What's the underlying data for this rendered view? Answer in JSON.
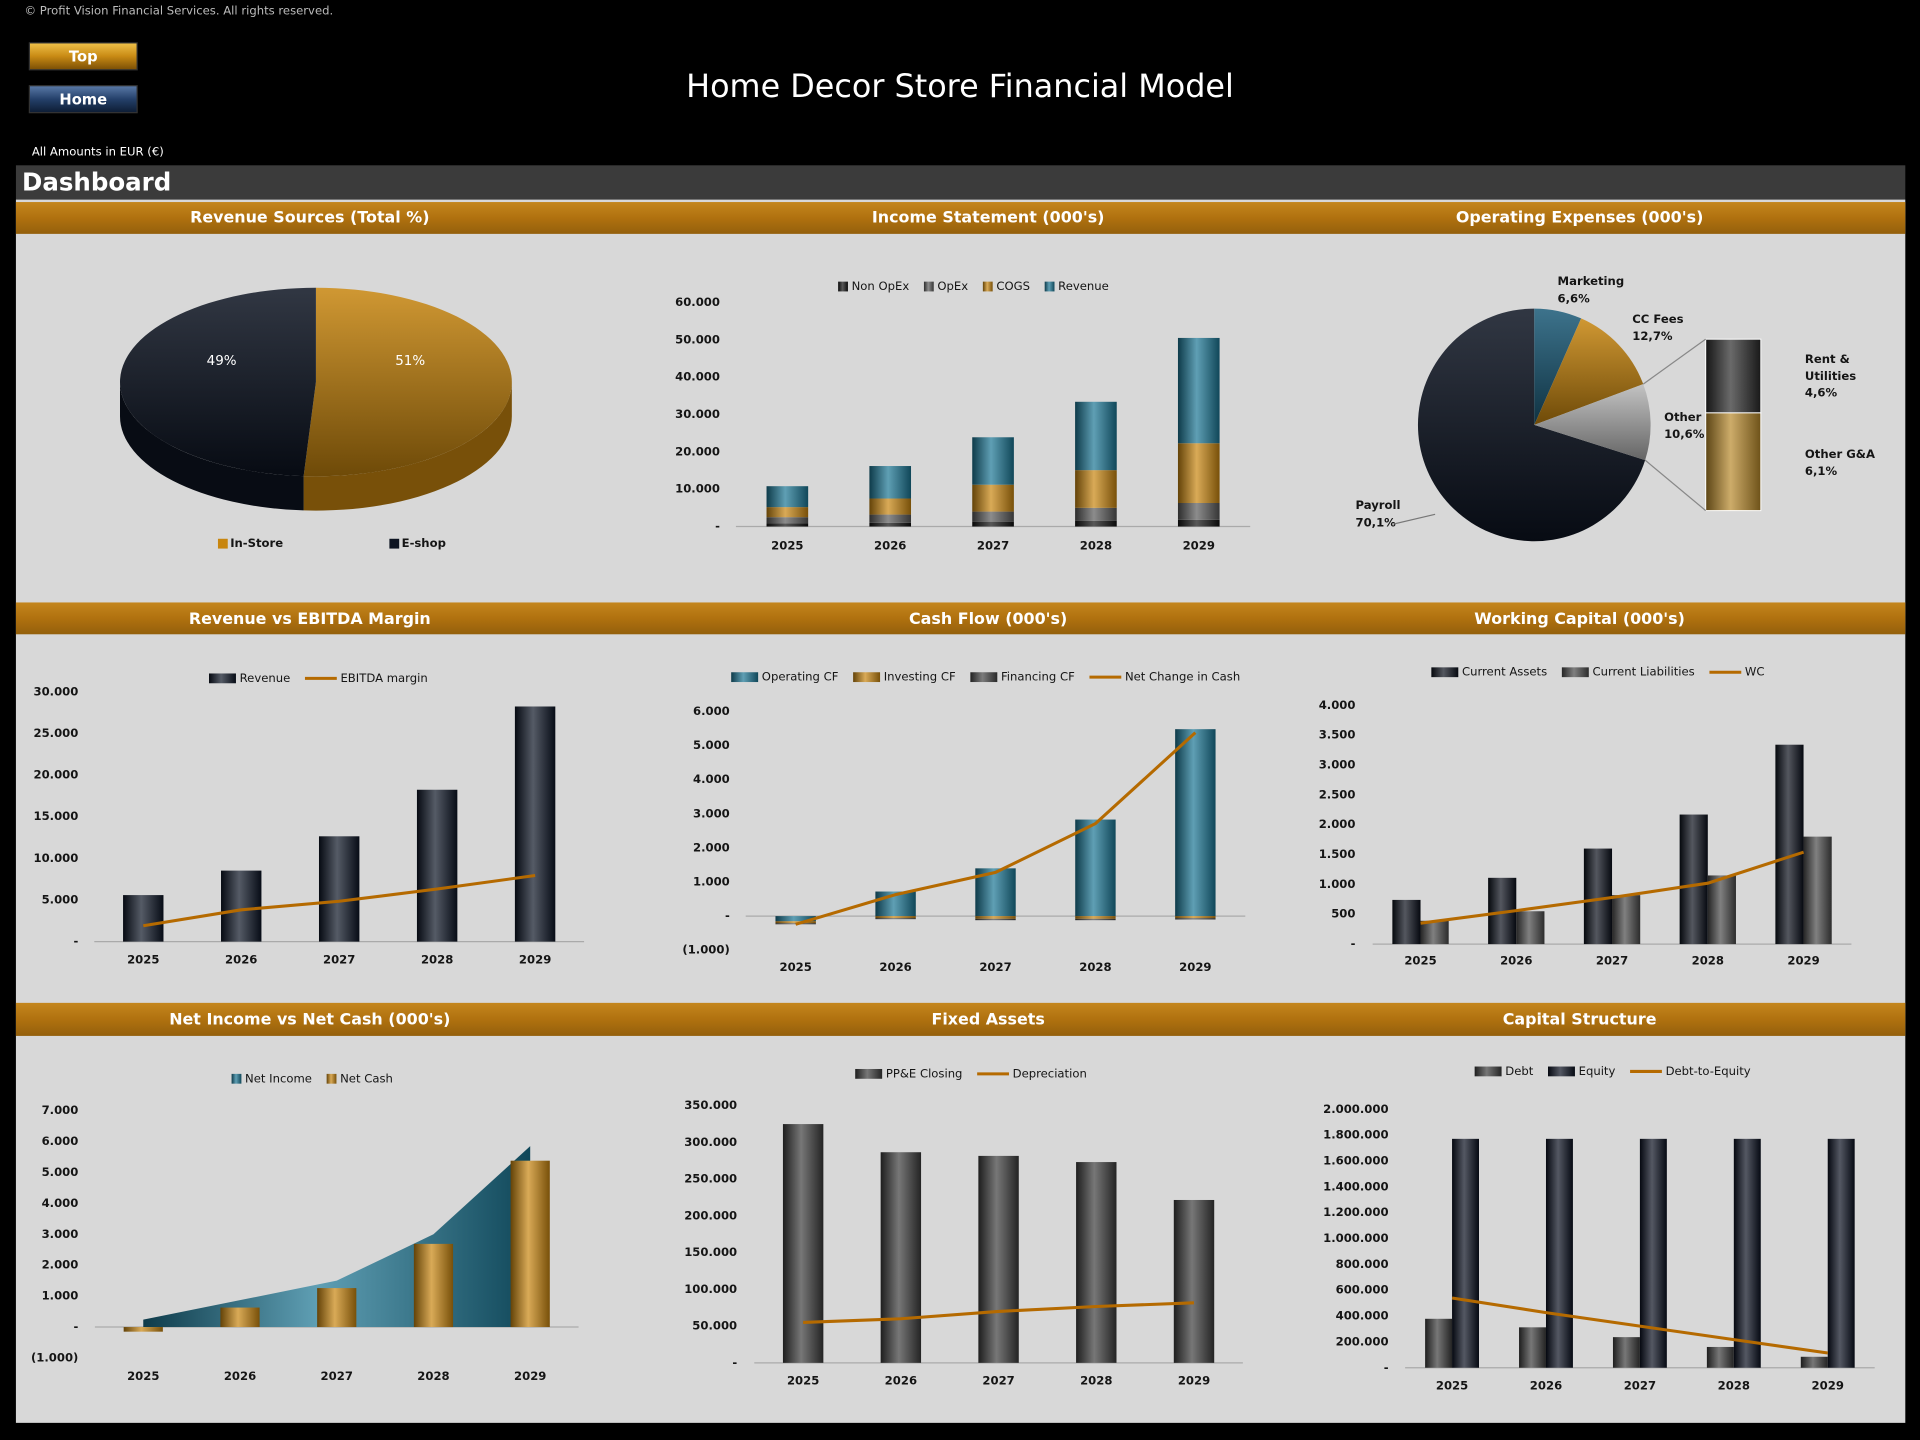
{
  "header": {
    "copyright": "© Profit Vision Financial Services. All rights reserved.",
    "buttons": [
      "Top",
      "Home"
    ],
    "title": "Home Decor Store Financial Model",
    "currency_note": "All Amounts in  EUR (€)",
    "section": "Dashboard"
  },
  "chart_data": [
    {
      "type": "pie3d",
      "title": "Revenue Sources (Total %)",
      "categories": [
        "In-Store",
        "E-shop"
      ],
      "values": [
        51,
        49
      ],
      "value_labels": [
        "51%",
        "49%"
      ],
      "colors": [
        "#c8860f",
        "#0d1422"
      ],
      "legend": "bottom"
    },
    {
      "type": "bar",
      "title": "Income Statement (000's)",
      "categories": [
        "2025",
        "2026",
        "2027",
        "2028",
        "2029"
      ],
      "stacked": true,
      "series": [
        {
          "name": "Non OpEx",
          "color": "#111111",
          "type": "bar",
          "values": [
            800,
            1000,
            1300,
            1500,
            1800
          ]
        },
        {
          "name": "OpEx",
          "color": "#5a5a5a",
          "type": "bar",
          "values": [
            1700,
            2200,
            2700,
            3500,
            4500
          ]
        },
        {
          "name": "COGS",
          "color": "#c8860f",
          "type": "bar",
          "values": [
            2700,
            4300,
            7200,
            10100,
            16000
          ]
        },
        {
          "name": "Revenue",
          "color": "#1b7694",
          "type": "bar",
          "values": [
            5600,
            8700,
            12700,
            18300,
            28200
          ]
        }
      ],
      "ylim": [
        0,
        60000
      ],
      "yticks": [
        {
          "value": 0,
          "label": "-"
        },
        {
          "value": 10000,
          "label": "10.000"
        },
        {
          "value": 20000,
          "label": "20.000"
        },
        {
          "value": 30000,
          "label": "30.000"
        },
        {
          "value": 40000,
          "label": "40.000"
        },
        {
          "value": 50000,
          "label": "50.000"
        },
        {
          "value": 60000,
          "label": "60.000"
        }
      ],
      "grid": false,
      "legend": "top"
    },
    {
      "type": "pie-of-bar",
      "title": "Operating Expenses (000's)",
      "categories": [
        "Payroll",
        "Marketing",
        "CC Fees",
        "Other"
      ],
      "values": [
        70.1,
        6.6,
        12.7,
        10.6
      ],
      "value_labels": [
        "70,1%",
        "6,6%",
        "12,7%",
        "10,6%"
      ],
      "colors": [
        "#0d1422",
        "#1b5a78",
        "#c8860f",
        "#b8b8b8"
      ],
      "breakdown": {
        "categories": [
          "Rent & Utilities",
          "Other G&A"
        ],
        "values": [
          4.6,
          6.1
        ],
        "value_labels": [
          "4,6%",
          "6,1%"
        ],
        "colors": [
          "#2a2a2a",
          "#b8892a"
        ]
      }
    },
    {
      "type": "bar",
      "title": "Revenue vs EBITDA Margin",
      "categories": [
        "2025",
        "2026",
        "2027",
        "2028",
        "2029"
      ],
      "series": [
        {
          "name": "Revenue",
          "color": "#0c1424",
          "type": "bar",
          "values": [
            5590,
            8530,
            12650,
            18240,
            28240
          ]
        },
        {
          "name": "EBITDA margin",
          "color": "#b56a00",
          "type": "line",
          "values": [
            1910,
            3820,
            4850,
            6320,
            7940
          ]
        }
      ],
      "ylim": [
        0,
        30000
      ],
      "yticks": [
        {
          "value": 0,
          "label": "-"
        },
        {
          "value": 5000,
          "label": "5.000"
        },
        {
          "value": 10000,
          "label": "10.000"
        },
        {
          "value": 15000,
          "label": "15.000"
        },
        {
          "value": 20000,
          "label": "20.000"
        },
        {
          "value": 25000,
          "label": "25.000"
        },
        {
          "value": 30000,
          "label": "30.000"
        }
      ],
      "grid": false,
      "legend": "top"
    },
    {
      "type": "bar",
      "title": "Cash Flow (000's)",
      "categories": [
        "2025",
        "2026",
        "2027",
        "2028",
        "2029"
      ],
      "stacked": true,
      "series": [
        {
          "name": "Operating CF",
          "color": "#1b7694",
          "type": "bar",
          "values": [
            -150,
            720,
            1400,
            2830,
            5480
          ]
        },
        {
          "name": "Investing CF",
          "color": "#c8860f",
          "type": "bar",
          "values": [
            -60,
            -60,
            -80,
            -80,
            -60
          ]
        },
        {
          "name": "Financing CF",
          "color": "#444444",
          "type": "bar",
          "values": [
            -30,
            -30,
            -40,
            -40,
            -40
          ]
        },
        {
          "name": "Net Change in Cash",
          "color": "#b56a00",
          "type": "line",
          "values": [
            -240,
            630,
            1280,
            2710,
            5380
          ]
        }
      ],
      "ylim": [
        -1000,
        6000
      ],
      "yticks": [
        {
          "value": -1000,
          "label": "(1.000)"
        },
        {
          "value": 0,
          "label": "-"
        },
        {
          "value": 1000,
          "label": "1.000"
        },
        {
          "value": 2000,
          "label": "2.000"
        },
        {
          "value": 3000,
          "label": "3.000"
        },
        {
          "value": 4000,
          "label": "4.000"
        },
        {
          "value": 5000,
          "label": "5.000"
        },
        {
          "value": 6000,
          "label": "6.000"
        }
      ],
      "grid": false,
      "legend": "top"
    },
    {
      "type": "bar",
      "title": "Working Capital (000's)",
      "categories": [
        "2025",
        "2026",
        "2027",
        "2028",
        "2029"
      ],
      "series": [
        {
          "name": "Current Assets",
          "color": "#0a0f1a",
          "type": "bar",
          "values": [
            740,
            1110,
            1600,
            2170,
            3340
          ]
        },
        {
          "name": "Current Liabilities",
          "color": "#4a4a4a",
          "type": "bar",
          "values": [
            390,
            550,
            820,
            1150,
            1800
          ]
        },
        {
          "name": "WC",
          "color": "#b56a00",
          "type": "line",
          "values": [
            350,
            560,
            780,
            1020,
            1540
          ]
        }
      ],
      "ylim": [
        0,
        4000
      ],
      "yticks": [
        {
          "value": 0,
          "label": "-"
        },
        500,
        {
          "value": 1000,
          "label": "1.000"
        },
        {
          "value": 1500,
          "label": "1.500"
        },
        {
          "value": 2000,
          "label": "2.000"
        },
        {
          "value": 2500,
          "label": "2.500"
        },
        {
          "value": 3000,
          "label": "3.000"
        },
        {
          "value": 3500,
          "label": "3.500"
        },
        {
          "value": 4000,
          "label": "4.000"
        }
      ],
      "grid": false,
      "legend": "top"
    },
    {
      "type": "bar",
      "title": "Net Income vs Net Cash (000's)",
      "categories": [
        "2025",
        "2026",
        "2027",
        "2028",
        "2029"
      ],
      "series": [
        {
          "name": "Net Income",
          "color": "#1b7694",
          "type": "area",
          "values": [
            240,
            870,
            1500,
            3000,
            5850
          ]
        },
        {
          "name": "Net Cash",
          "color": "#c8860f",
          "type": "bar",
          "values": [
            -150,
            630,
            1260,
            2690,
            5380
          ]
        }
      ],
      "ylim": [
        -1000,
        7000
      ],
      "yticks": [
        {
          "value": -1000,
          "label": "(1.000)"
        },
        {
          "value": 0,
          "label": "-"
        },
        {
          "value": 1000,
          "label": "1.000"
        },
        {
          "value": 2000,
          "label": "2.000"
        },
        {
          "value": 3000,
          "label": "3.000"
        },
        {
          "value": 4000,
          "label": "4.000"
        },
        {
          "value": 5000,
          "label": "5.000"
        },
        {
          "value": 6000,
          "label": "6.000"
        },
        {
          "value": 7000,
          "label": "7.000"
        }
      ],
      "grid": false,
      "legend": "top"
    },
    {
      "type": "bar",
      "title": "Fixed Assets",
      "categories": [
        "2025",
        "2026",
        "2027",
        "2028",
        "2029"
      ],
      "series": [
        {
          "name": "PP&E Closing",
          "color": "#3c3c3c",
          "type": "bar",
          "values": [
            325000,
            286700,
            281700,
            273300,
            221700
          ]
        },
        {
          "name": "Depreciation",
          "color": "#b56a00",
          "type": "line",
          "values": [
            55000,
            60000,
            70000,
            76700,
            81700
          ]
        }
      ],
      "ylim": [
        0,
        350000
      ],
      "yticks": [
        {
          "value": 0,
          "label": "-"
        },
        {
          "value": 50000,
          "label": "50.000"
        },
        {
          "value": 100000,
          "label": "100.000"
        },
        {
          "value": 150000,
          "label": "150.000"
        },
        {
          "value": 200000,
          "label": "200.000"
        },
        {
          "value": 250000,
          "label": "250.000"
        },
        {
          "value": 300000,
          "label": "300.000"
        },
        {
          "value": 350000,
          "label": "350.000"
        }
      ],
      "grid": false,
      "legend": "top"
    },
    {
      "type": "bar",
      "title": "Capital Structure",
      "categories": [
        "2025",
        "2026",
        "2027",
        "2028",
        "2029"
      ],
      "series": [
        {
          "name": "Debt",
          "color": "#3c3c3c",
          "type": "bar",
          "values": [
            379000,
            313000,
            237000,
            161000,
            85000
          ]
        },
        {
          "name": "Equity",
          "color": "#0a1020",
          "type": "bar",
          "values": [
            1772000,
            1772000,
            1772000,
            1772000,
            1772000
          ]
        },
        {
          "name": "Debt-to-Equity",
          "color": "#b56a00",
          "type": "line",
          "values": [
            540000,
            427000,
            322000,
            218000,
            114000
          ]
        }
      ],
      "ylim": [
        0,
        2000000
      ],
      "yticks": [
        {
          "value": 0,
          "label": "-"
        },
        {
          "value": 200000,
          "label": "200.000"
        },
        {
          "value": 400000,
          "label": "400.000"
        },
        {
          "value": 600000,
          "label": "600.000"
        },
        {
          "value": 800000,
          "label": "800.000"
        },
        {
          "value": 1000000,
          "label": "1.000.000"
        },
        {
          "value": 1200000,
          "label": "1.200.000"
        },
        {
          "value": 1400000,
          "label": "1.400.000"
        },
        {
          "value": 1600000,
          "label": "1.600.000"
        },
        {
          "value": 1800000,
          "label": "1.800.000"
        },
        {
          "value": 2000000,
          "label": "2.000.000"
        }
      ],
      "grid": false,
      "legend": "top"
    }
  ]
}
